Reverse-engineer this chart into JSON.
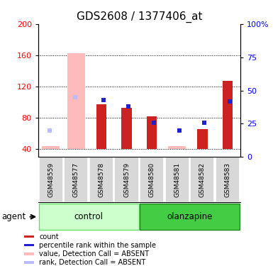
{
  "title": "GDS2608 / 1377406_at",
  "samples": [
    "GSM48559",
    "GSM48577",
    "GSM48578",
    "GSM48579",
    "GSM48580",
    "GSM48581",
    "GSM48582",
    "GSM48583"
  ],
  "groups": [
    "control",
    "control",
    "control",
    "control",
    "olanzapine",
    "olanzapine",
    "olanzapine",
    "olanzapine"
  ],
  "red_values": [
    null,
    null,
    97,
    93,
    82,
    null,
    66,
    127
  ],
  "blue_values_pct": [
    null,
    null,
    43,
    38,
    26,
    20,
    26,
    42
  ],
  "pink_values": [
    44,
    163,
    null,
    null,
    null,
    44,
    null,
    null
  ],
  "lightblue_values_pct": [
    20,
    45,
    null,
    null,
    null,
    null,
    null,
    null
  ],
  "ylim_left": [
    30,
    200
  ],
  "ylim_right": [
    0,
    100
  ],
  "yticks_left": [
    40,
    80,
    120,
    160,
    200
  ],
  "yticks_right": [
    0,
    25,
    50,
    75,
    100
  ],
  "bar_bottom": 40,
  "control_color_light": "#ccffcc",
  "control_color": "#66dd66",
  "olanzapine_color": "#44cc44",
  "red_color": "#cc2222",
  "blue_color": "#2222cc",
  "pink_color": "#ffbbbb",
  "lightblue_color": "#bbbbff",
  "title_fontsize": 11,
  "tick_fontsize": 8,
  "legend_items": [
    {
      "color": "#cc2222",
      "label": "count"
    },
    {
      "color": "#2222cc",
      "label": "percentile rank within the sample"
    },
    {
      "color": "#ffbbbb",
      "label": "value, Detection Call = ABSENT"
    },
    {
      "color": "#bbbbff",
      "label": "rank, Detection Call = ABSENT"
    }
  ]
}
